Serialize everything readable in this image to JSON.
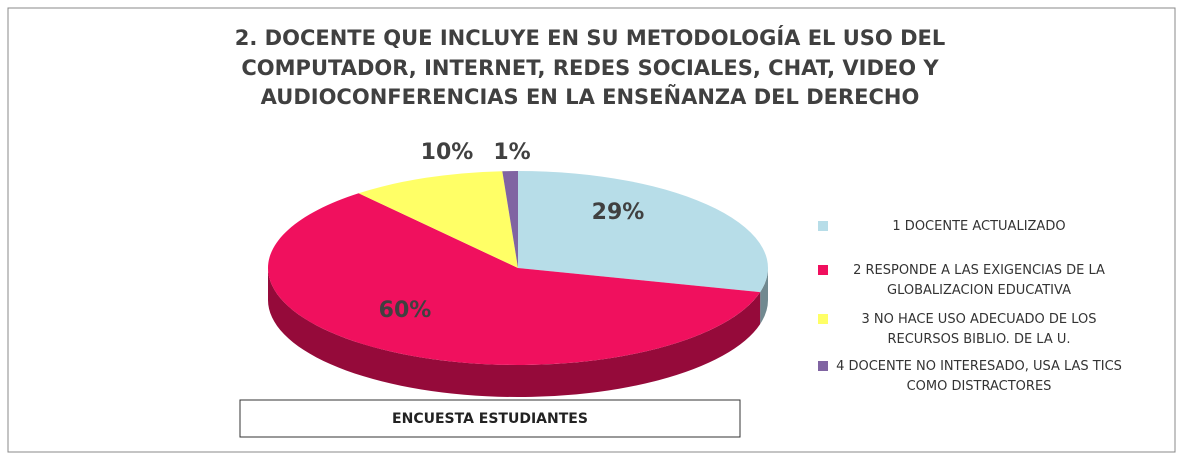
{
  "chart_data": {
    "type": "pie3d",
    "title": [
      "2. DOCENTE QUE INCLUYE EN SU METODOLOGÍA EL USO DEL",
      "COMPUTADOR, INTERNET, REDES SOCIALES, CHAT, VIDEO Y",
      "AUDIOCONFERENCIAS EN LA ENSEÑANZA DEL DERECHO"
    ],
    "categories": [
      "1 DOCENTE ACTUALIZADO",
      "2 RESPONDE A LAS EXIGENCIAS DE LA GLOBALIZACION EDUCATIVA",
      "3 NO HACE USO ADECUADO DE LOS RECURSOS BIBLIO. DE LA U.",
      "4 DOCENTE NO INTERESADO, USA LAS TICS COMO DISTRACTORES"
    ],
    "values": [
      29,
      60,
      10,
      1
    ],
    "value_labels": [
      "29%",
      "60%",
      "10%",
      "1%"
    ],
    "colors": [
      "#b7dde8",
      "#f0105e",
      "#ffff66",
      "#8064a2"
    ],
    "legend": "right",
    "annotation": "ENCUESTA  ESTUDIANTES"
  }
}
